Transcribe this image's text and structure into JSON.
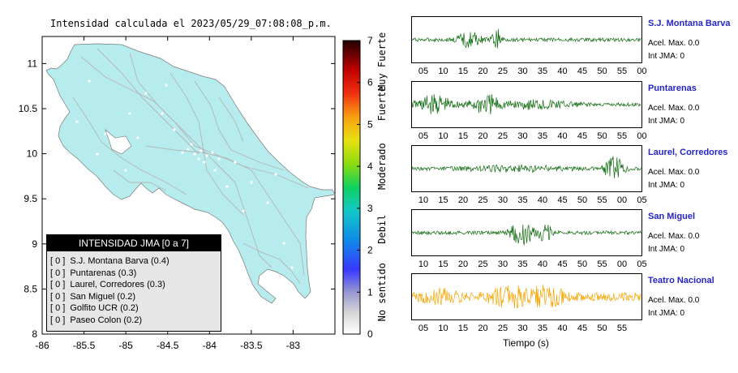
{
  "title": "Intensidad calculada el 2023/05/29_07:08:08_p.m.",
  "chart_data": [
    {
      "type": "map",
      "xaxis_ticks": [
        "-86",
        "-85.5",
        "-85",
        "-84.5",
        "-84",
        "-83.5",
        "-83"
      ],
      "yaxis_ticks": [
        "11",
        "10.5",
        "10",
        "9.5",
        "9",
        "8.5",
        "8"
      ],
      "xlim": [
        -86,
        -82.5
      ],
      "ylim": [
        8,
        11.3
      ],
      "land_color": "#b6eced",
      "road_color": "#b4b4b4"
    },
    {
      "type": "colorbar",
      "ticks": [
        "7",
        "6",
        "5",
        "4",
        "3",
        "2",
        "1",
        "0"
      ],
      "category_labels": [
        "Muy Fuerte",
        "Fuerte",
        "Moderado",
        "Debil",
        "No sentido"
      ],
      "range": [
        0,
        7
      ]
    }
  ],
  "legend": {
    "header": "INTENSIDAD JMA [0 a 7]",
    "items": [
      {
        "level": "[ 0 ]",
        "name": "S.J. Montana Barva (0.4)"
      },
      {
        "level": "[ 0 ]",
        "name": "Puntarenas (0.3)"
      },
      {
        "level": "[ 0 ]",
        "name": "Laurel, Corredores (0.3)"
      },
      {
        "level": "[ 0 ]",
        "name": "San Miguel (0.2)"
      },
      {
        "level": "[ 0 ]",
        "name": "Golfito UCR (0.2)"
      },
      {
        "level": "[ 0 ]",
        "name": "Paseo Colon (0.2)"
      }
    ]
  },
  "traces": [
    {
      "station": "S.J. Montana Barva",
      "acel": "Acel. Max. 0.0",
      "int": "Int JMA: 0",
      "color": "#0d6a0d",
      "ticks": [
        "05",
        "10",
        "15",
        "20",
        "25",
        "30",
        "35",
        "40",
        "45",
        "50",
        "55",
        "00"
      ]
    },
    {
      "station": "Puntarenas",
      "acel": "Acel. Max. 0.0",
      "int": "Int JMA: 0",
      "color": "#0d6a0d",
      "ticks": [
        "05",
        "10",
        "15",
        "20",
        "25",
        "30",
        "35",
        "40",
        "45",
        "50",
        "55",
        "00"
      ]
    },
    {
      "station": "Laurel, Corredores",
      "acel": "Acel. Max. 0.0",
      "int": "Int JMA: 0",
      "color": "#0d6a0d",
      "ticks": [
        "10",
        "15",
        "20",
        "25",
        "30",
        "35",
        "40",
        "45",
        "50",
        "55",
        "00",
        "05"
      ]
    },
    {
      "station": "San Miguel",
      "acel": "Acel. Max. 0.0",
      "int": "Int JMA: 0",
      "color": "#0d6a0d",
      "ticks": [
        "10",
        "15",
        "20",
        "25",
        "30",
        "35",
        "40",
        "45",
        "50",
        "55",
        "00",
        "05"
      ]
    },
    {
      "station": "Teatro Nacional",
      "acel": "Acel. Max. 0.0",
      "int": "Int JMA: 0",
      "color": "#f5a500",
      "ticks": [
        "05",
        "10",
        "15",
        "20",
        "25",
        "30",
        "35",
        "40",
        "45",
        "50",
        "55"
      ]
    }
  ],
  "xlabel": "Tiempo (s)"
}
